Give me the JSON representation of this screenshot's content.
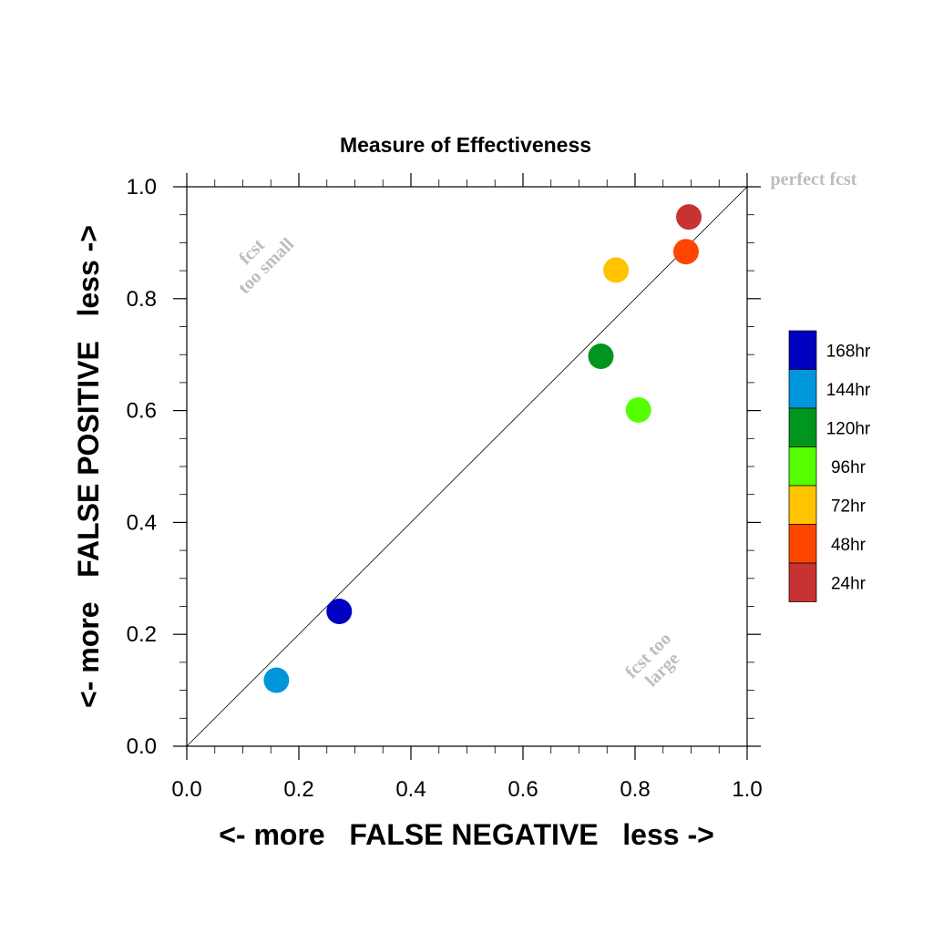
{
  "chart_data": {
    "type": "scatter",
    "title": "Measure of Effectiveness",
    "xlabel": "<- more   FALSE NEGATIVE   less ->",
    "ylabel": "<- more   FALSE POSITIVE   less ->",
    "xlim": [
      0.0,
      1.0
    ],
    "ylim": [
      0.0,
      1.0
    ],
    "x_ticks": [
      "0.0",
      "0.2",
      "0.4",
      "0.6",
      "0.8",
      "1.0"
    ],
    "y_ticks": [
      "0.0",
      "0.2",
      "0.4",
      "0.6",
      "0.8",
      "1.0"
    ],
    "grid": false,
    "diagonal_line": true,
    "legend_position": "right",
    "annotations": {
      "perfect": "perfect fcst",
      "too_small_1": "fcst",
      "too_small_2": "too small",
      "too_large_1": "fcst too",
      "too_large_2": "large"
    },
    "series": [
      {
        "name": "168hr",
        "color": "#0000c0",
        "x": 0.272,
        "y": 0.241
      },
      {
        "name": "144hr",
        "color": "#0096dc",
        "x": 0.16,
        "y": 0.118
      },
      {
        "name": "120hr",
        "color": "#00961e",
        "x": 0.739,
        "y": 0.697
      },
      {
        "name": "96hr",
        "color": "#55ff00",
        "x": 0.806,
        "y": 0.601
      },
      {
        "name": "72hr",
        "color": "#ffc300",
        "x": 0.766,
        "y": 0.851
      },
      {
        "name": "48hr",
        "color": "#ff4600",
        "x": 0.891,
        "y": 0.884
      },
      {
        "name": "24hr",
        "color": "#c83232",
        "x": 0.896,
        "y": 0.946
      }
    ]
  }
}
